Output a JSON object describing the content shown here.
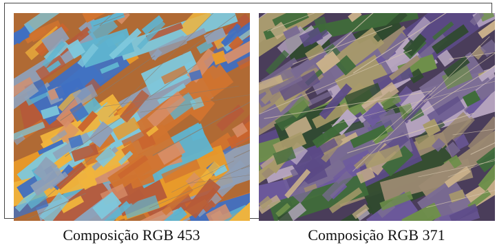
{
  "captions": {
    "left": "Composição RGB 453",
    "right": "Composição RGB 371"
  },
  "palettes": {
    "left": [
      "#d1742f",
      "#e89a2a",
      "#f0b43c",
      "#c9642e",
      "#5fb4d0",
      "#7ec8dc",
      "#3f6fc2",
      "#b55a3a",
      "#d88f6a",
      "#8fa0b8"
    ],
    "right": [
      "#5b4a86",
      "#6d5a9e",
      "#3f6b3a",
      "#6e8f4a",
      "#c9b08a",
      "#9c8a72",
      "#2f4a2e",
      "#b8a7c2",
      "#7a6b93",
      "#a89a6a"
    ]
  }
}
